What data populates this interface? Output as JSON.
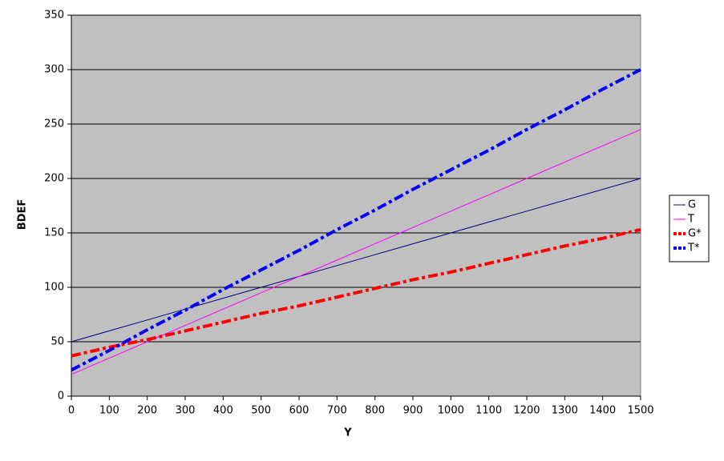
{
  "chart_data": {
    "type": "line",
    "x_label": "Y",
    "y_label": "BDEF",
    "x": [
      0,
      100,
      200,
      300,
      400,
      500,
      600,
      700,
      800,
      900,
      1000,
      1100,
      1200,
      1300,
      1400,
      1500
    ],
    "series": [
      {
        "name": "G",
        "color": "#000080",
        "width": 1,
        "dash": "solid",
        "values": [
          50,
          60,
          70,
          80,
          90,
          100,
          110,
          120,
          130,
          140,
          150,
          160,
          170,
          180,
          190,
          200
        ]
      },
      {
        "name": "T",
        "color": "#ff00ff",
        "width": 1,
        "dash": "solid",
        "values": [
          20,
          35,
          50,
          65,
          80,
          95,
          110,
          125,
          140,
          155,
          170,
          185,
          200,
          215,
          230,
          245
        ]
      },
      {
        "name": "G*",
        "color": "#ff0000",
        "width": 4,
        "dash": "dashdot",
        "values": [
          37,
          45,
          52,
          60,
          68,
          76,
          83,
          91,
          99,
          107,
          114,
          122,
          130,
          138,
          145,
          153
        ]
      },
      {
        "name": "T*",
        "color": "#0000ff",
        "width": 4,
        "dash": "dashdot",
        "values": [
          24,
          42,
          61,
          79,
          98,
          116,
          134,
          153,
          171,
          190,
          208,
          226,
          245,
          263,
          282,
          300
        ]
      }
    ],
    "xlim": [
      0,
      1500
    ],
    "xticks": [
      0,
      100,
      200,
      300,
      400,
      500,
      600,
      700,
      800,
      900,
      1000,
      1100,
      1200,
      1300,
      1400,
      1500
    ],
    "ylim": [
      0,
      350
    ],
    "yticks": [
      0,
      50,
      100,
      150,
      200,
      250,
      300,
      350
    ],
    "grid": true,
    "legend": "right",
    "plot_background": "#c0c0c0"
  }
}
